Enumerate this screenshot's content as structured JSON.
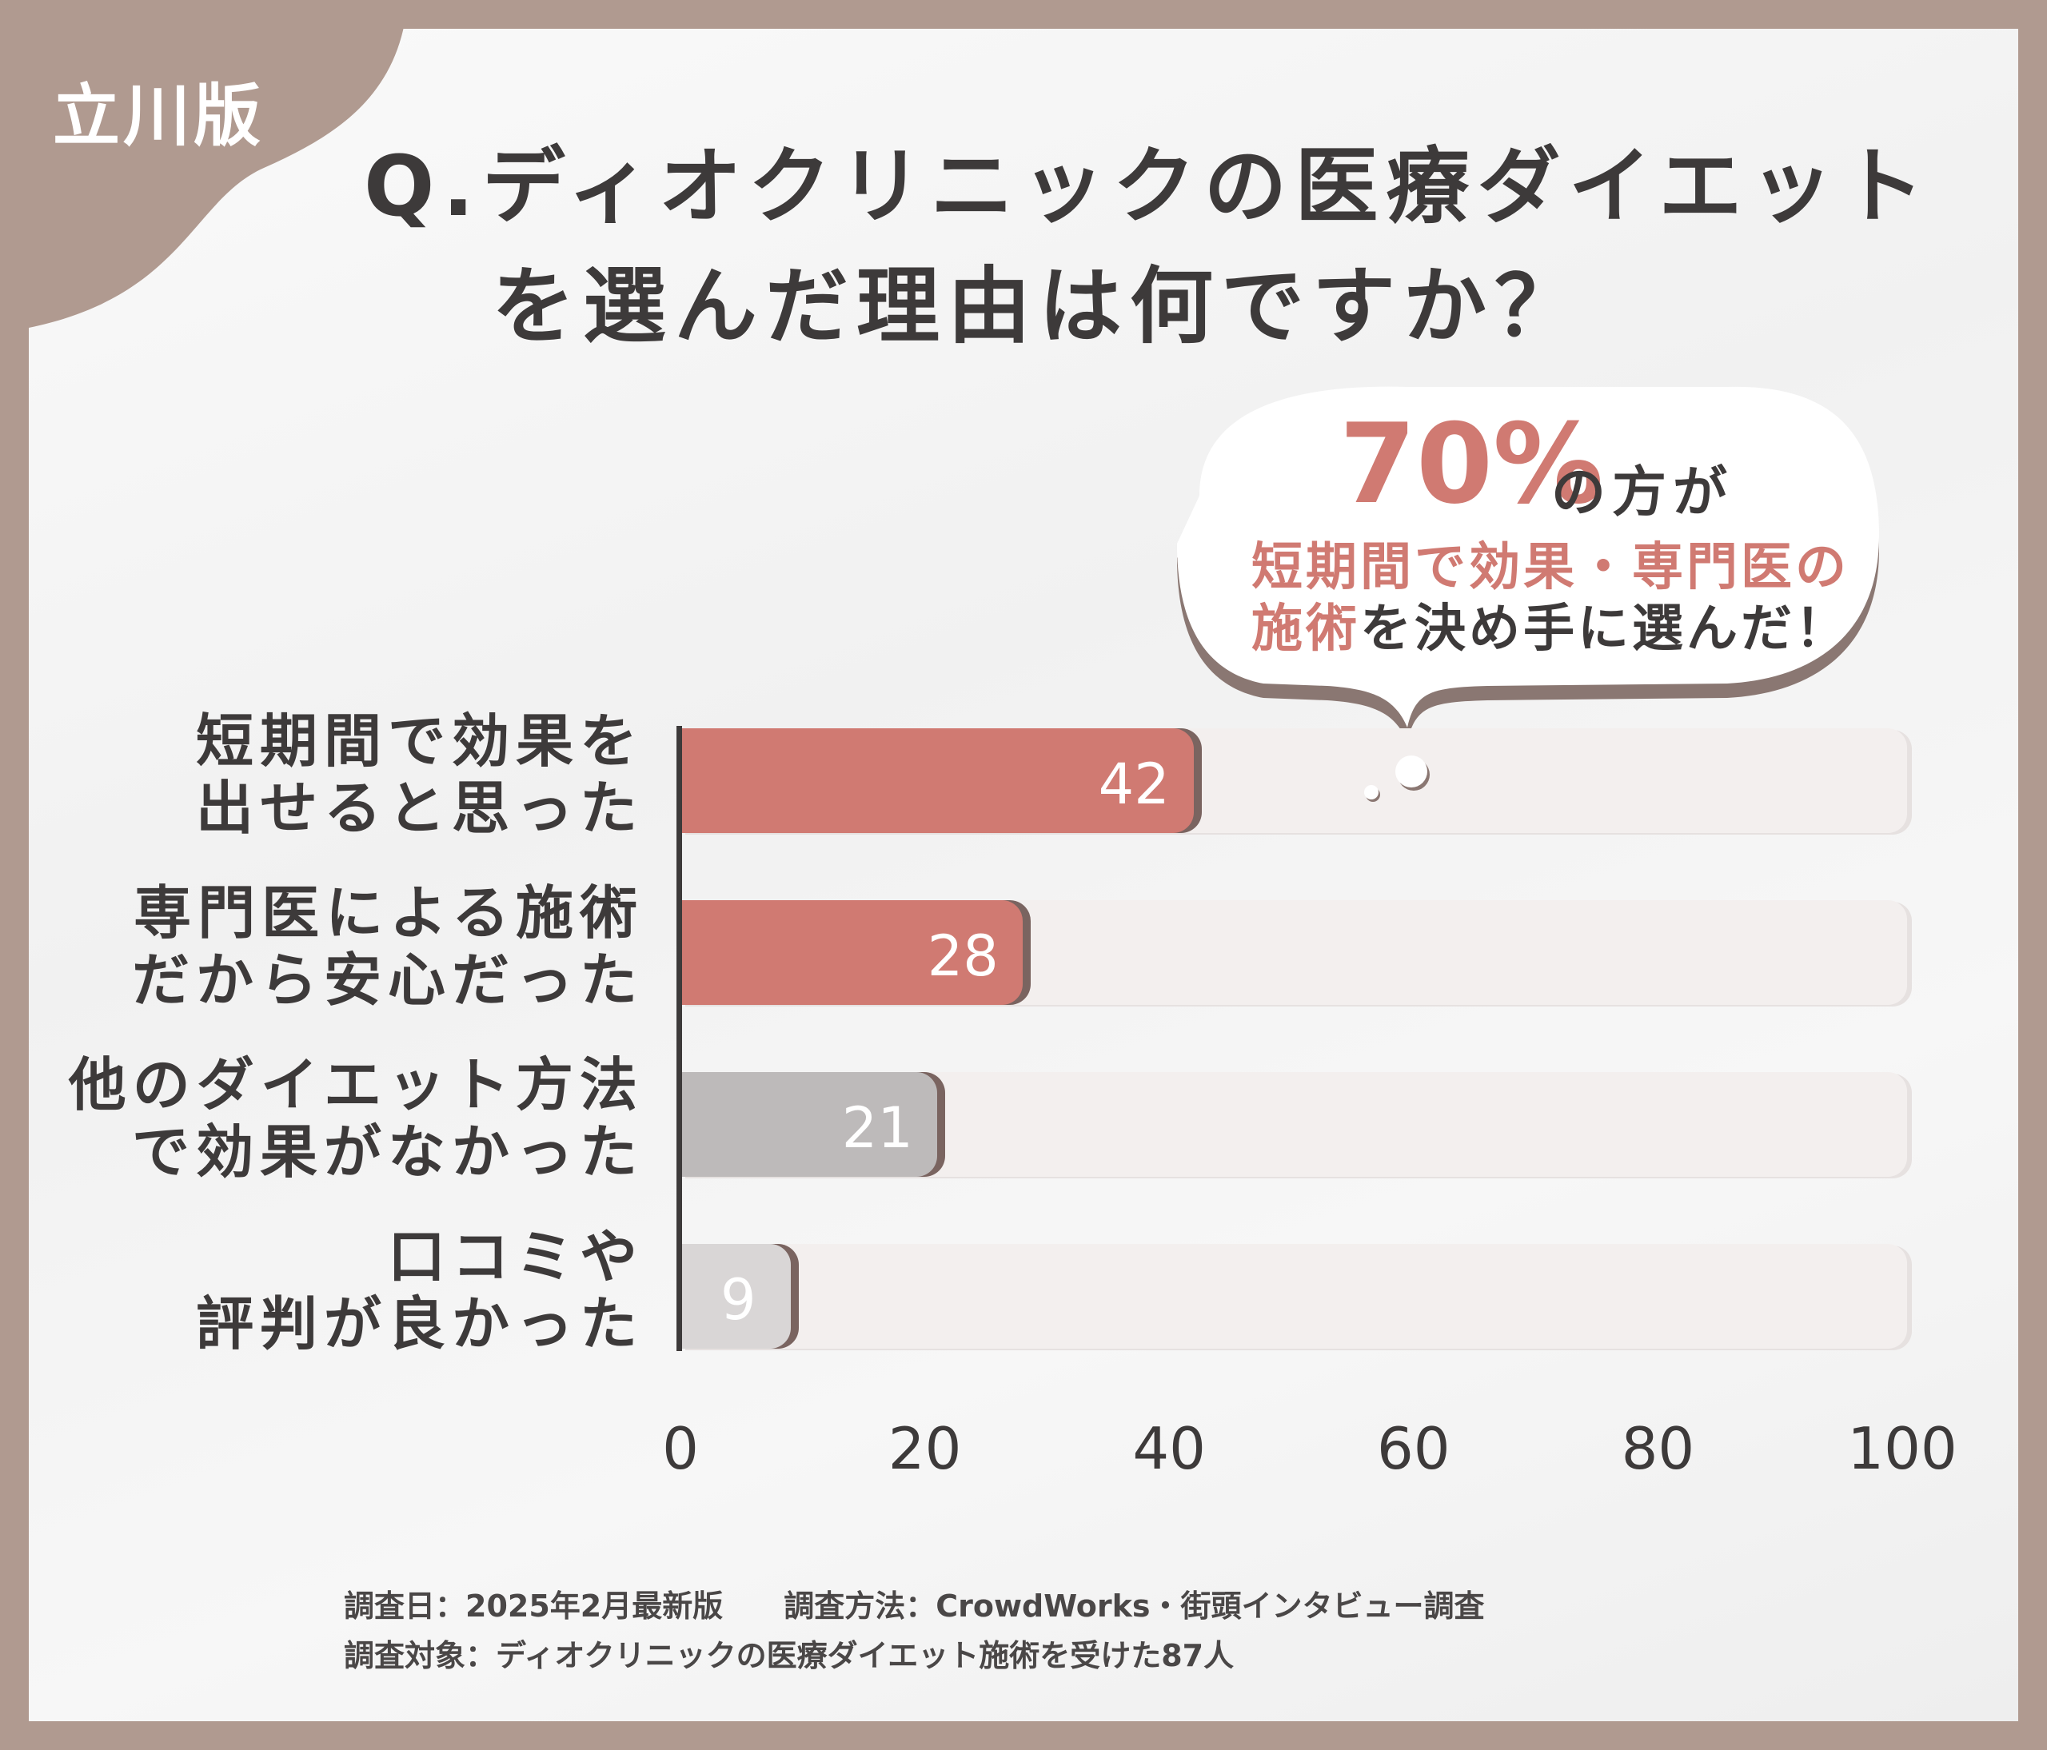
{
  "badge": "立川版",
  "title": {
    "line1": "Q.ディオクリニックの医療ダイエット",
    "line2": "を選んだ理由は何ですか？"
  },
  "callout": {
    "percent": "70%",
    "suffix": "の方が",
    "line2": "短期間で効果・専門医の",
    "line3_highlight": "施術",
    "line3_rest": "を決め手に選んだ！"
  },
  "chart_data": {
    "type": "bar",
    "orientation": "horizontal",
    "categories": [
      [
        "短期間で効果を",
        "出せると思った"
      ],
      [
        "専門医による施術",
        "だから安心だった"
      ],
      [
        "他のダイエット方法",
        "で効果がなかった"
      ],
      [
        "口コミや",
        "評判が良かった"
      ]
    ],
    "values": [
      42,
      28,
      21,
      9
    ],
    "bar_colors": [
      "#d07a72",
      "#d07a72",
      "#bdbaba",
      "#d9d6d6"
    ],
    "xlim": [
      0,
      100
    ],
    "xticks": [
      "0",
      "20",
      "40",
      "60",
      "80",
      "100"
    ],
    "grid": false
  },
  "footer": {
    "line1": "調査日：2025年2月最新版　　調査方法：CrowdWorks・街頭インタビュー調査",
    "line2": "調査対象：ディオクリニックの医療ダイエット施術を受けた87人"
  },
  "colors": {
    "frame": "#b09a90",
    "accent": "#d07a72",
    "text": "#3d3a3a",
    "track": "#f3efee"
  }
}
